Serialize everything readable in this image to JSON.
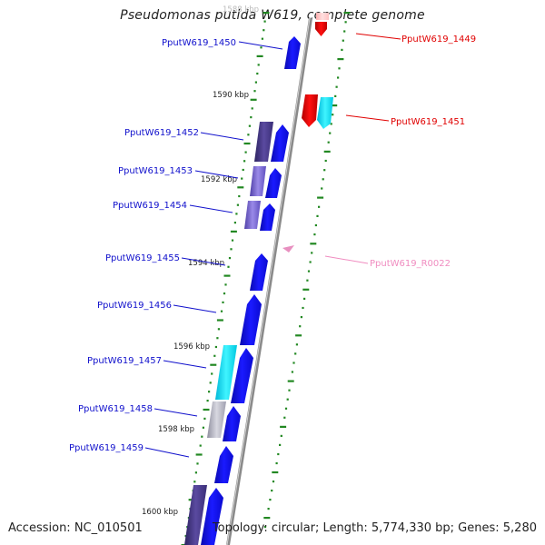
{
  "header": {
    "title": "Pseudomonas putida W619, complete genome"
  },
  "footer": {
    "accession": "Accession: NC_010501",
    "topology": "Topology: circular; Length: 5,774,330 bp; Genes: 5,280"
  },
  "scale": {
    "ticks": [
      {
        "label": "1588 kbp",
        "faded": true
      },
      {
        "label": "1590 kbp"
      },
      {
        "label": "1592 kbp"
      },
      {
        "label": "1594 kbp"
      },
      {
        "label": "1596 kbp"
      },
      {
        "label": "1598 kbp"
      },
      {
        "label": "1600 kbp"
      }
    ]
  },
  "colors": {
    "cds": "#1010e8",
    "cds_label": "#1010cc",
    "reverse_gene": "#e00000",
    "reverse_gene_light": "#ffc8c8",
    "rna": "#f08cc0",
    "rna_label": "#f08cc0",
    "cyan": "#00e0f0",
    "purple_dark": "#4a3c88",
    "purple_mid": "#7a6ad0",
    "gray": "#b8b8c8",
    "tick": "#228822",
    "backbone": "#888888"
  },
  "genes": [
    {
      "label": "PputW619_1449",
      "strand": "minus",
      "color": "reverse_gene"
    },
    {
      "label": "PputW619_1450",
      "strand": "plus",
      "color": "cds_label"
    },
    {
      "label": "PputW619_1451",
      "strand": "minus",
      "color": "reverse_gene"
    },
    {
      "label": "PputW619_1452",
      "strand": "plus",
      "color": "cds_label"
    },
    {
      "label": "PputW619_1453",
      "strand": "plus",
      "color": "cds_label"
    },
    {
      "label": "PputW619_1454",
      "strand": "plus",
      "color": "cds_label"
    },
    {
      "label": "PputW619_R0022",
      "strand": "minus",
      "color": "rna_label"
    },
    {
      "label": "PputW619_1455",
      "strand": "plus",
      "color": "cds_label"
    },
    {
      "label": "PputW619_1456",
      "strand": "plus",
      "color": "cds_label"
    },
    {
      "label": "PputW619_1457",
      "strand": "plus",
      "color": "cds_label"
    },
    {
      "label": "PputW619_1458",
      "strand": "plus",
      "color": "cds_label"
    },
    {
      "label": "PputW619_1459",
      "strand": "plus",
      "color": "cds_label"
    }
  ]
}
